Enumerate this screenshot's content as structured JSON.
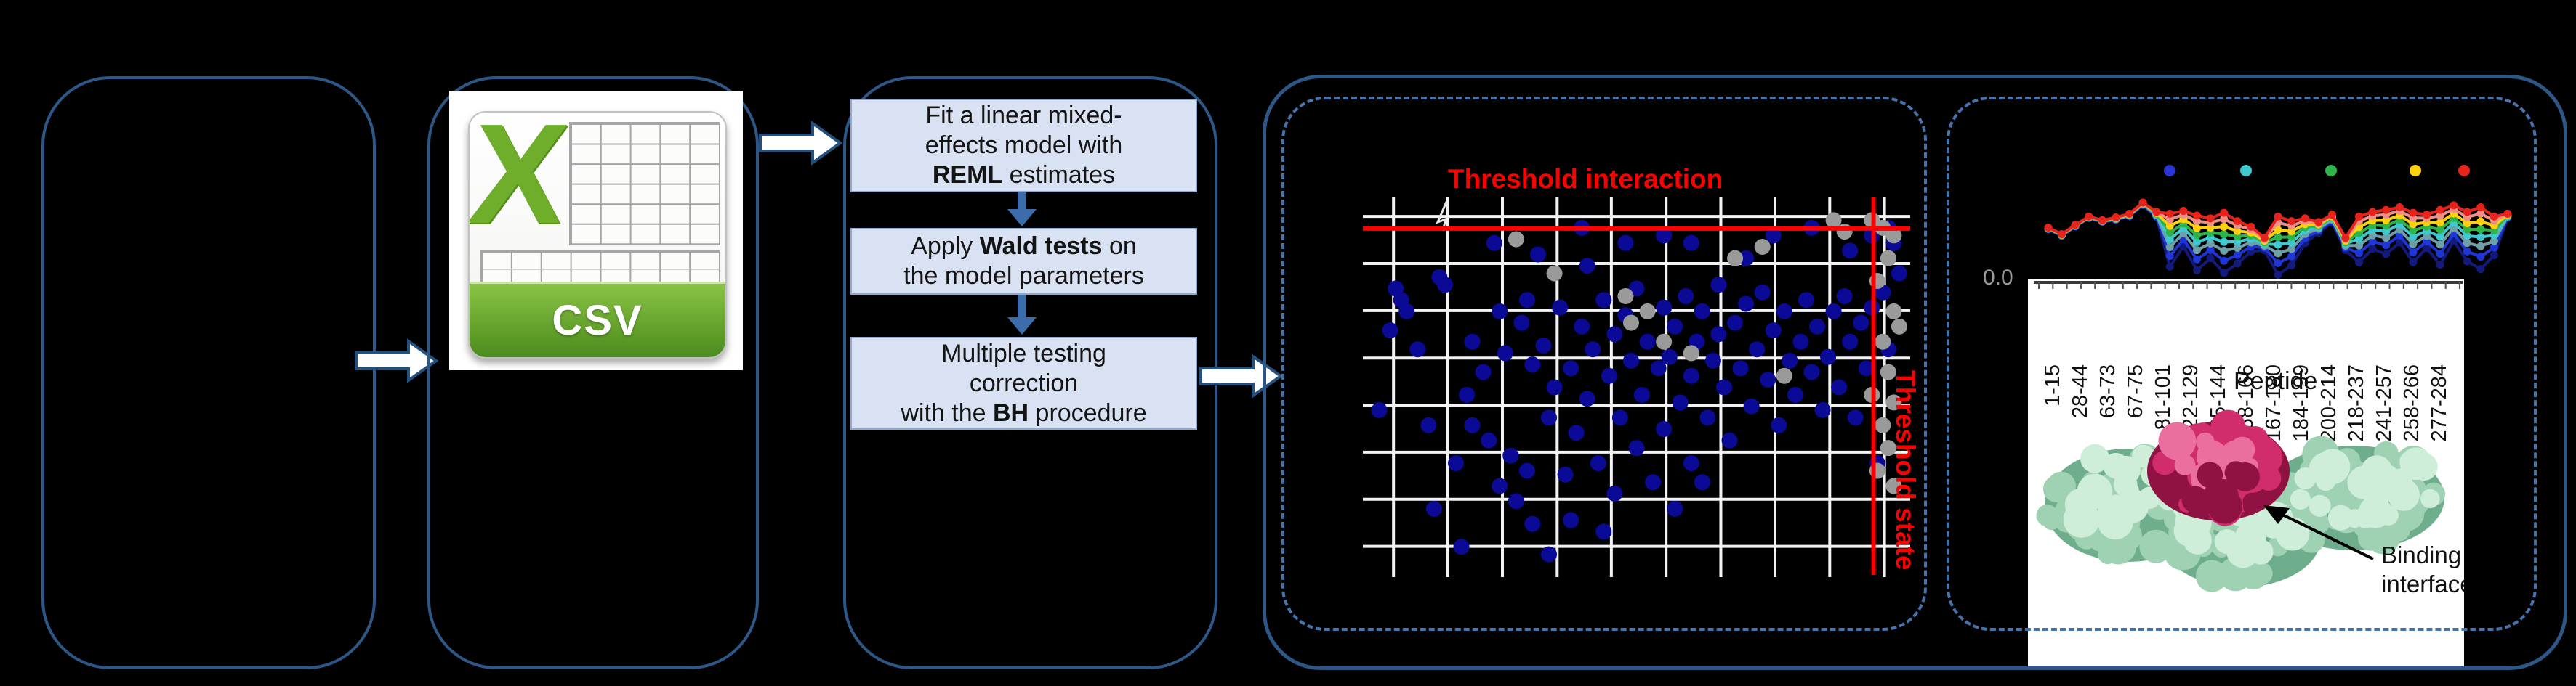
{
  "colors": {
    "background": "#000000",
    "solid_border": "#2d5787",
    "dashed_border": "#4673ab",
    "step_fill": "#d9e2f3",
    "step_border": "#8fa9d0",
    "flow_arrow": "#3d6cab",
    "block_arrow_fill": "#ffffff",
    "block_arrow_stroke": "#24507e",
    "threshold_red": "#ff0000",
    "scatter_blue": "#0a0a96",
    "scatter_gray": "#9a9a9a",
    "grid_white": "#f2f2f2",
    "protein_green": "#9ed2b2",
    "protein_green_dark": "#6fae8c",
    "protein_green_light": "#cfeeda",
    "protein_pink": "#d12d6d",
    "protein_pink_dark": "#8f1243",
    "protein_pink_light": "#ea6f9f"
  },
  "csv_icon": {
    "letter": "X",
    "label": "CSV"
  },
  "flowchart": {
    "steps": [
      {
        "lines": [
          [
            {
              "t": "Fit a linear mixed-"
            }
          ],
          [
            {
              "t": "effects model with"
            }
          ],
          [
            {
              "t": "REML",
              "b": 1
            },
            {
              "t": " estimates"
            }
          ]
        ]
      },
      {
        "lines": [
          [
            {
              "t": "Apply "
            },
            {
              "t": "Wald tests",
              "b": 1
            },
            {
              "t": " on"
            }
          ],
          [
            {
              "t": "the model parameters"
            }
          ]
        ]
      },
      {
        "lines": [
          [
            {
              "t": "Multiple testing"
            }
          ],
          [
            {
              "t": "correction"
            }
          ],
          [
            {
              "t": "with the "
            },
            {
              "t": "BH",
              "b": 1
            },
            {
              "t": " procedure"
            }
          ]
        ]
      }
    ]
  },
  "scatter_panel": {
    "title": "Threshold interaction",
    "state_label": "Threshold state"
  },
  "peptide_panel": {
    "ytick": "0.0",
    "xlabel": "Peptide",
    "annotation_line1": "Binding",
    "annotation_line2": "interface"
  },
  "chart_data": [
    {
      "type": "scatter",
      "title": "Threshold interaction",
      "annotations": [
        "Threshold interaction",
        "Threshold state"
      ],
      "thresholds": {
        "horizontal_y_pct": 8.2,
        "vertical_x_pct": 93.3
      },
      "grid_x_pct": [
        5.6,
        15.5,
        25.5,
        35.5,
        45.4,
        55.4,
        65.4,
        75.3,
        85.3,
        95.3
      ],
      "grid_y_pct": [
        5.0,
        17.4,
        29.8,
        42.3,
        54.7,
        67.1,
        79.5,
        91.9
      ],
      "series": [
        {
          "name": "interaction-points-blue",
          "color": "#0a0a96",
          "points": [
            [
              3,
              56
            ],
            [
              5,
              35
            ],
            [
              6,
              24
            ],
            [
              7,
              27
            ],
            [
              8,
              30
            ],
            [
              10,
              40
            ],
            [
              12,
              60
            ],
            [
              13,
              82
            ],
            [
              14,
              21
            ],
            [
              15,
              23
            ],
            [
              17,
              70
            ],
            [
              18,
              92
            ],
            [
              19,
              52
            ],
            [
              20,
              38
            ],
            [
              20,
              60
            ],
            [
              22,
              46
            ],
            [
              23,
              64
            ],
            [
              24,
              12
            ],
            [
              25,
              30
            ],
            [
              25,
              76
            ],
            [
              26,
              41
            ],
            [
              27,
              68
            ],
            [
              28,
              80
            ],
            [
              29,
              33
            ],
            [
              30,
              27
            ],
            [
              30,
              72
            ],
            [
              31,
              44
            ],
            [
              31,
              86
            ],
            [
              32,
              15
            ],
            [
              33,
              39
            ],
            [
              34,
              58
            ],
            [
              34,
              94
            ],
            [
              35,
              50
            ],
            [
              36,
              29
            ],
            [
              37,
              73
            ],
            [
              38,
              45
            ],
            [
              38,
              85
            ],
            [
              39,
              62
            ],
            [
              40,
              8
            ],
            [
              40,
              34
            ],
            [
              41,
              18
            ],
            [
              41,
              53
            ],
            [
              42,
              40
            ],
            [
              43,
              70
            ],
            [
              44,
              27
            ],
            [
              44,
              88
            ],
            [
              45,
              47
            ],
            [
              46,
              36
            ],
            [
              46,
              78
            ],
            [
              47,
              58
            ],
            [
              48,
              12
            ],
            [
              48,
              31
            ],
            [
              49,
              43
            ],
            [
              50,
              24
            ],
            [
              50,
              66
            ],
            [
              51,
              52
            ],
            [
              52,
              38
            ],
            [
              53,
              75
            ],
            [
              54,
              45
            ],
            [
              55,
              10
            ],
            [
              55,
              29
            ],
            [
              55,
              61
            ],
            [
              56,
              42
            ],
            [
              57,
              34
            ],
            [
              57,
              82
            ],
            [
              58,
              54
            ],
            [
              59,
              26
            ],
            [
              60,
              12
            ],
            [
              60,
              47
            ],
            [
              60,
              70
            ],
            [
              61,
              38
            ],
            [
              62,
              30
            ],
            [
              62,
              75
            ],
            [
              63,
              58
            ],
            [
              64,
              43
            ],
            [
              65,
              23
            ],
            [
              65,
              36
            ],
            [
              66,
              50
            ],
            [
              67,
              64
            ],
            [
              68,
              33
            ],
            [
              69,
              45
            ],
            [
              70,
              16
            ],
            [
              70,
              28
            ],
            [
              71,
              55
            ],
            [
              72,
              40
            ],
            [
              73,
              25
            ],
            [
              74,
              48
            ],
            [
              75,
              10
            ],
            [
              75,
              35
            ],
            [
              76,
              60
            ],
            [
              77,
              30
            ],
            [
              78,
              43
            ],
            [
              79,
              52
            ],
            [
              80,
              38
            ],
            [
              81,
              27
            ],
            [
              82,
              8
            ],
            [
              82,
              46
            ],
            [
              83,
              34
            ],
            [
              84,
              56
            ],
            [
              85,
              42
            ],
            [
              86,
              30
            ],
            [
              87,
              50
            ],
            [
              88,
              26
            ],
            [
              89,
              14
            ],
            [
              89,
              38
            ],
            [
              90,
              58
            ],
            [
              91,
              33
            ],
            [
              92,
              45
            ],
            [
              93,
              10
            ],
            [
              93,
              29
            ],
            [
              94,
              70
            ],
            [
              95,
              25
            ],
            [
              96,
              8
            ],
            [
              96,
              40
            ],
            [
              97,
              12
            ],
            [
              98,
              20
            ]
          ]
        },
        {
          "name": "state-points-gray",
          "color": "#9a9a9a",
          "points": [
            [
              48,
              26
            ],
            [
              49,
              33
            ],
            [
              52,
              30
            ],
            [
              55,
              38
            ],
            [
              35,
              20
            ],
            [
              60,
              41
            ],
            [
              68,
              16
            ],
            [
              73,
              13
            ],
            [
              28,
              11
            ],
            [
              86,
              6
            ],
            [
              88,
              9
            ],
            [
              93,
              6
            ],
            [
              95,
              8
            ],
            [
              97,
              10
            ],
            [
              96,
              16
            ],
            [
              94,
              22
            ],
            [
              97,
              30
            ],
            [
              95,
              38
            ],
            [
              96,
              46
            ],
            [
              97,
              54
            ],
            [
              95,
              60
            ],
            [
              96,
              66
            ],
            [
              94,
              72
            ],
            [
              97,
              76
            ],
            [
              93,
              52
            ],
            [
              98,
              34
            ],
            [
              77,
              47
            ]
          ]
        }
      ]
    },
    {
      "type": "line",
      "xlabel": "Peptide",
      "ytick_label": "0.0",
      "x_categories": [
        "1-15",
        "28-44",
        "63-73",
        "67-75",
        "81-101",
        "122-129",
        "135-144",
        "158-166",
        "167-180",
        "184-199",
        "200-214",
        "218-237",
        "241-257",
        "258-266",
        "277-284"
      ],
      "legend_dot_colors": [
        "#2a35d6",
        "#3ec9d0",
        "#2db44a",
        "#ffd10c",
        "#e8231b"
      ],
      "n_points": 35,
      "series": [
        {
          "name": "t-longest",
          "color": "#131a7e",
          "values": [
            46.9,
            53.9,
            43.9,
            34.9,
            38.9,
            36.9,
            32.9,
            20.9,
            33.7,
            87,
            65,
            90.9,
            77.8,
            93.6,
            83.6,
            70.6,
            69.3,
            95.7,
            85.5,
            61.6,
            50.4,
            39.6,
            69.3,
            82.4,
            67.9,
            73.5,
            61,
            82.2,
            67.1,
            84.9,
            59,
            81.2,
            89.5,
            74.8,
            34.8
          ]
        },
        {
          "name": "t-long",
          "color": "#1e36d8",
          "values": [
            46.5,
            53.5,
            43.5,
            34.5,
            38.5,
            36.3,
            32.3,
            20.3,
            32.6,
            75.6,
            57.4,
            79.1,
            69.2,
            80.7,
            74.5,
            65.3,
            66.6,
            83.2,
            76,
            56.3,
            48.1,
            37.8,
            66.6,
            72.5,
            59.9,
            64,
            53.4,
            71.6,
            59.9,
            73.1,
            51.4,
            70.6,
            76.2,
            66.4,
            33.8
          ]
        },
        {
          "name": "t-mid-steel",
          "color": "#6fa0a8",
          "values": [
            46.2,
            53.2,
            43.2,
            34.2,
            38.2,
            35.8,
            31.8,
            19.8,
            31.6,
            66,
            51,
            69.2,
            62,
            69.8,
            66.8,
            60.8,
            64.4,
            72.6,
            68,
            51.8,
            46.2,
            36.4,
            64.4,
            64.2,
            53.2,
            56,
            47,
            62.6,
            53.8,
            63.2,
            45,
            61.6,
            65,
            59.4,
            33
          ]
        },
        {
          "name": "t-mid-cyan",
          "color": "#3ec9d0",
          "values": [
            45.9,
            52.9,
            42.9,
            33.9,
            37.9,
            35.4,
            31.4,
            19.4,
            30.8,
            57.6,
            45.4,
            60.5,
            55.7,
            60.3,
            60.1,
            56.9,
            62.4,
            63.4,
            61,
            47.9,
            44.5,
            35.1,
            62.4,
            56.9,
            47.3,
            49,
            41.4,
            54.8,
            48.5,
            54.5,
            39.4,
            53.8,
            55.2,
            53.2,
            32.3
          ]
        },
        {
          "name": "t-short-green",
          "color": "#2db44a",
          "values": [
            45.7,
            52.7,
            42.7,
            33.7,
            37.7,
            35,
            31,
            19,
            30,
            50.4,
            40.6,
            53.1,
            50.3,
            52.1,
            54.3,
            53.5,
            60.8,
            55.4,
            55,
            44.5,
            43.1,
            34.1,
            60.8,
            50.7,
            42.3,
            43,
            36.6,
            48,
            43.9,
            47.1,
            34.6,
            47,
            46.8,
            48,
            31.7
          ]
        },
        {
          "name": "t-short-yellow",
          "color": "#ffd10c",
          "values": [
            45.4,
            52.4,
            42.4,
            33.4,
            37.4,
            34.7,
            30.7,
            18.7,
            29.3,
            43.2,
            35.8,
            45.6,
            44.9,
            44,
            48.6,
            50.2,
            59.1,
            47.5,
            49,
            41.2,
            41.6,
            33,
            59.1,
            44.4,
            37.2,
            37,
            31.8,
            41.3,
            39.4,
            39.6,
            29.8,
            40.3,
            38.4,
            42.7,
            31.1
          ]
        },
        {
          "name": "t-shortest-salmon",
          "color": "#f08f86",
          "values": [
            45.2,
            52.2,
            42.2,
            33.2,
            37.2,
            34.3,
            30.3,
            18.3,
            28.6,
            36,
            31,
            38.2,
            39.5,
            35.8,
            42.8,
            46.8,
            57.4,
            39.6,
            43,
            37.8,
            40.2,
            31.9,
            57.4,
            38.2,
            32.2,
            31,
            27,
            34.6,
            34.8,
            32.2,
            25,
            33.6,
            30,
            37.4,
            30.5
          ]
        },
        {
          "name": "t-zero-red",
          "color": "#e8231b",
          "values": [
            45,
            52,
            42,
            33,
            37,
            34,
            30,
            18,
            28,
            30,
            27,
            32,
            35,
            29,
            38,
            44,
            56,
            33,
            38,
            35,
            39,
            31,
            56,
            33,
            28,
            26,
            23,
            29,
            31,
            26,
            21,
            28,
            23,
            33,
            30
          ]
        }
      ]
    }
  ]
}
